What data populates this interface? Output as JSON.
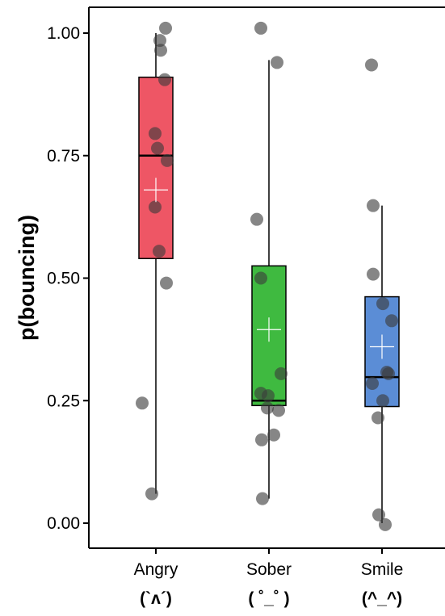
{
  "chart_data": {
    "type": "box",
    "title": "",
    "xlabel": "",
    "ylabel": "p(bouncing)",
    "ylim": [
      -0.05,
      1.05
    ],
    "yticks": [
      0,
      0.25,
      0.5,
      0.75,
      1
    ],
    "ytick_labels": [
      "0.00",
      "0.25",
      "0.50",
      "0.75",
      "1.00"
    ],
    "grid": false,
    "legend": "none",
    "categories": [
      "Angry",
      "Sober",
      "Smile"
    ],
    "category_emoticons": [
      "(`ʌ´)",
      "( ˚_˚ )",
      "(^_^)"
    ],
    "series": [
      {
        "category": "Angry",
        "color": "#EE5665",
        "whisker_low": 0.06,
        "q1": 0.54,
        "median": 0.75,
        "q3": 0.91,
        "whisker_high": 1.0,
        "mean": 0.68,
        "points": [
          1.01,
          0.985,
          0.965,
          0.905,
          0.795,
          0.765,
          0.74,
          0.645,
          0.555,
          0.49,
          0.245,
          0.06
        ],
        "jitter": [
          0.12,
          0.05,
          0.06,
          0.11,
          -0.01,
          0.02,
          0.14,
          -0.01,
          0.04,
          0.13,
          -0.17,
          -0.05
        ]
      },
      {
        "category": "Sober",
        "color": "#3FBA40",
        "whisker_low": 0.05,
        "q1": 0.24,
        "median": 0.25,
        "q3": 0.525,
        "whisker_high": 0.945,
        "mean": 0.395,
        "points": [
          1.01,
          0.94,
          0.62,
          0.5,
          0.305,
          0.265,
          0.26,
          0.235,
          0.23,
          0.18,
          0.17,
          0.05
        ],
        "jitter": [
          -0.1,
          0.1,
          -0.15,
          -0.1,
          0.15,
          -0.1,
          -0.01,
          -0.02,
          0.12,
          0.06,
          -0.09,
          -0.08
        ]
      },
      {
        "category": "Smile",
        "color": "#5B8DD6",
        "whisker_low": 0.0,
        "q1": 0.238,
        "median": 0.298,
        "q3": 0.462,
        "whisker_high": 0.648,
        "mean": 0.36,
        "points": [
          0.935,
          0.648,
          0.508,
          0.448,
          0.413,
          0.308,
          0.305,
          0.285,
          0.25,
          0.215,
          0.017,
          -0.003
        ],
        "jitter": [
          -0.13,
          -0.11,
          -0.11,
          0.01,
          0.12,
          0.06,
          0.08,
          -0.12,
          0.01,
          -0.05,
          -0.04,
          0.04
        ]
      }
    ]
  }
}
